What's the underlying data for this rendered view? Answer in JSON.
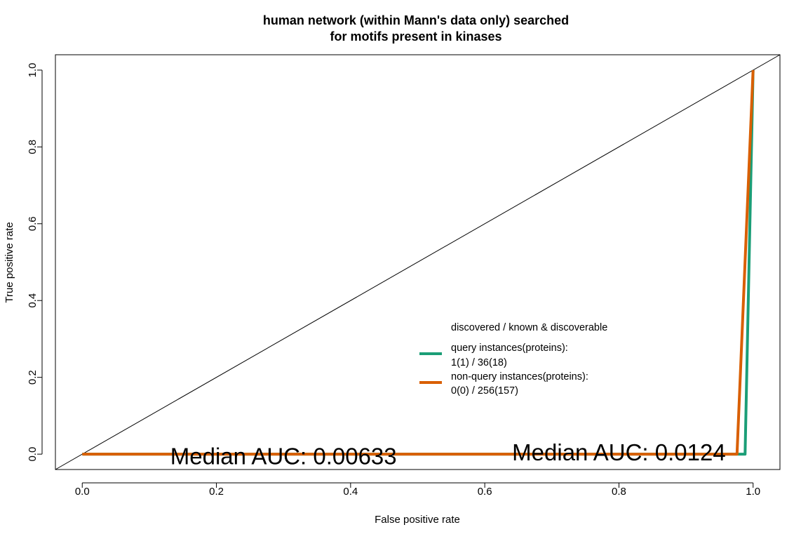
{
  "chart_data": {
    "type": "line",
    "title_lines": [
      "human network (within Mann's data only) searched",
      "for motifs present in kinases"
    ],
    "xlabel": "False positive rate",
    "ylabel": "True positive rate",
    "xlim": [
      -0.04,
      1.04
    ],
    "ylim": [
      -0.04,
      1.04
    ],
    "x_ticks": [
      "0.0",
      "0.2",
      "0.4",
      "0.6",
      "0.8",
      "1.0"
    ],
    "y_ticks": [
      "0.0",
      "0.2",
      "0.4",
      "0.6",
      "0.8",
      "1.0"
    ],
    "grid": false,
    "reference_line": {
      "x": [
        -0.04,
        1.04
      ],
      "y": [
        -0.04,
        1.04
      ],
      "color": "#000000"
    },
    "series": [
      {
        "name": "query instances(proteins):",
        "name_line2": "1(1) / 36(18)",
        "color": "#1b9e77",
        "x": [
          0.0,
          0.988,
          1.0
        ],
        "y": [
          0.0,
          0.0,
          1.0
        ]
      },
      {
        "name": "non-query instances(proteins):",
        "name_line2": "0(0) / 256(157)",
        "color": "#d95f02",
        "x": [
          0.0,
          0.976,
          1.0
        ],
        "y": [
          0.0,
          0.0,
          1.0
        ]
      }
    ],
    "legend_title": "discovered / known & discoverable",
    "legend_position": "center-right",
    "annotations": [
      {
        "text": "Median AUC: 0.00633",
        "x": 0.3,
        "y": -0.01
      },
      {
        "text": "Median AUC: 0.0124",
        "x": 0.8,
        "y": 0.0
      }
    ]
  }
}
